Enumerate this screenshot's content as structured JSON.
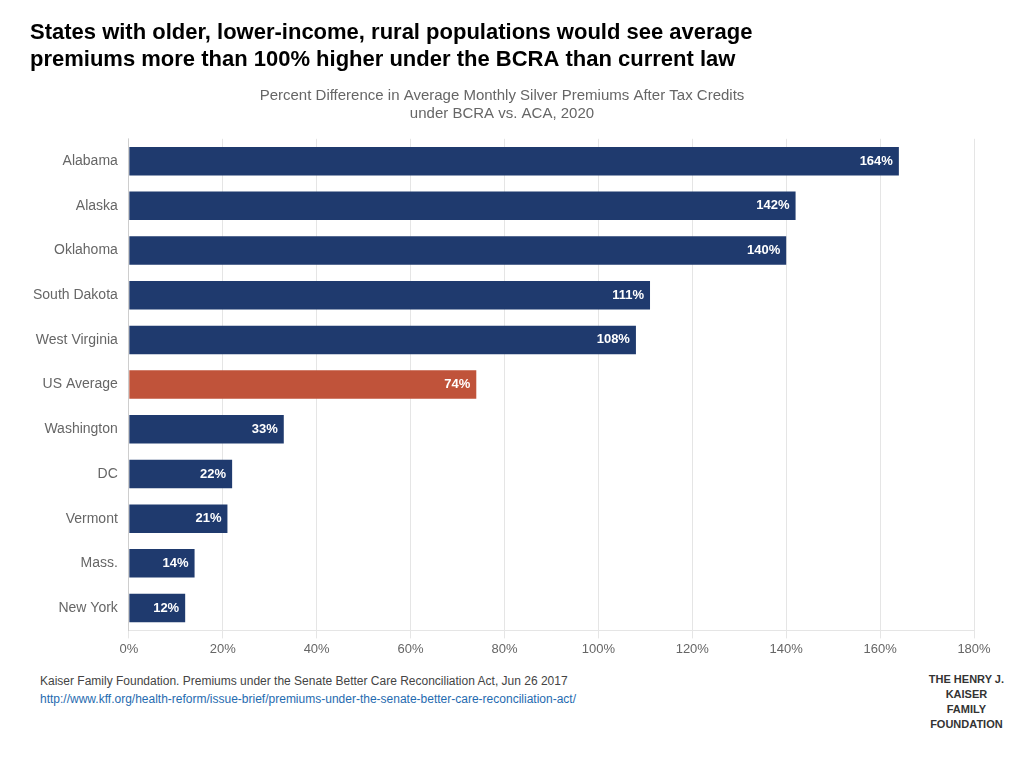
{
  "chart_data": {
    "type": "bar",
    "orientation": "horizontal",
    "title": [
      "States with older, lower-income, rural populations would see average",
      "premiums more than 100% higher under the BCRA than current law"
    ],
    "subtitle": [
      "Percent Difference in Average Monthly Silver Premiums After Tax Credits",
      "under BCRA vs. ACA, 2020"
    ],
    "categories": [
      "Alabama",
      "Alaska",
      "Oklahoma",
      "South Dakota",
      "West Virginia",
      "US Average",
      "Washington",
      "DC",
      "Vermont",
      "Mass.",
      "New York"
    ],
    "values": [
      164,
      142,
      140,
      111,
      108,
      74,
      33,
      22,
      21,
      14,
      12
    ],
    "value_labels": [
      "164%",
      "142%",
      "140%",
      "111%",
      "108%",
      "74%",
      "33%",
      "22%",
      "21%",
      "14%",
      "12%"
    ],
    "data_labels": true,
    "colors": [
      "#1f3a6e",
      "#1f3a6e",
      "#1f3a6e",
      "#1f3a6e",
      "#1f3a6e",
      "#c0533a",
      "#1f3a6e",
      "#1f3a6e",
      "#1f3a6e",
      "#1f3a6e",
      "#1f3a6e"
    ],
    "xlim": [
      0,
      180
    ],
    "xticks": [
      {
        "value": 0,
        "label": "0%"
      },
      {
        "value": 20,
        "label": "20%"
      },
      {
        "value": 40,
        "label": "40%"
      },
      {
        "value": 60,
        "label": "60%"
      },
      {
        "value": 80,
        "label": "80%"
      },
      {
        "value": 100,
        "label": "100%"
      },
      {
        "value": 120,
        "label": "120%"
      },
      {
        "value": 140,
        "label": "140%"
      },
      {
        "value": 160,
        "label": "160%"
      },
      {
        "value": 180,
        "label": "180%"
      }
    ],
    "grid": true,
    "annotations": [
      "Kaiser Family Foundation. Premiums under the Senate Better Care Reconciliation Act, Jun 26 2017 ",
      "http://www.kff.org/health-reform/issue-brief/premiums-under-the-senate-better-care-reconciliation-act/",
      "THE HENRY J.",
      "KAISER",
      "FAMILY",
      "FOUNDATION"
    ]
  }
}
